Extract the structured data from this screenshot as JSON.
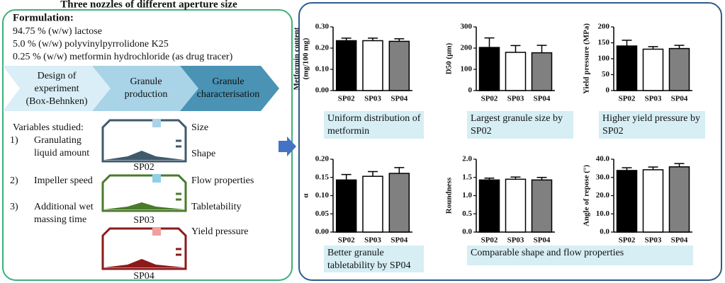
{
  "title": "Three nozzles of different aperture size",
  "formulation": {
    "heading": "Formulation:",
    "items": [
      "94.75 % (w/w) lactose",
      "5.0 % (w/w) polyvinylpyrrolidone K25",
      "0.25 % (w/w) metformin hydrochloride (as drug tracer)"
    ]
  },
  "steps": [
    [
      "Design of",
      "experiment",
      "(Box-Behnken)"
    ],
    [
      "Granule",
      "production"
    ],
    [
      "Granule",
      "characterisation"
    ]
  ],
  "variables": {
    "heading": "Variables studied:",
    "items": [
      {
        "number": "1)",
        "lines": [
          "Granulating",
          "liquid amount"
        ]
      },
      {
        "number": "2)",
        "lines": [
          "Impeller speed"
        ]
      },
      {
        "number": "3)",
        "lines": [
          "Additional wet",
          "massing time"
        ]
      }
    ]
  },
  "nozzles": [
    "SP02",
    "SP03",
    "SP04"
  ],
  "properties": [
    "Size",
    "Shape",
    "Flow properties",
    "Tabletability",
    "Yield pressure"
  ],
  "chart_data": [
    {
      "type": "bar",
      "ylabel": [
        "Metformin content",
        "(mg/100 mg)"
      ],
      "categories": [
        "SP02",
        "SP03",
        "SP04"
      ],
      "values": [
        0.235,
        0.235,
        0.232
      ],
      "errors": [
        0.012,
        0.012,
        0.012
      ],
      "colors": [
        "#000000",
        "#ffffff",
        "#808080"
      ],
      "ylim": [
        0,
        0.3
      ],
      "yticks": [
        {
          "value": 0,
          "label": "0.00"
        },
        {
          "value": 0.1,
          "label": "0.10"
        },
        {
          "value": 0.2,
          "label": "0.20"
        },
        {
          "value": 0.3,
          "label": "0.30"
        }
      ]
    },
    {
      "type": "bar",
      "ylabel": [
        "D50 (µm)"
      ],
      "categories": [
        "SP02",
        "SP03",
        "SP04"
      ],
      "values": [
        203,
        180,
        178
      ],
      "errors": [
        45,
        32,
        35
      ],
      "colors": [
        "#000000",
        "#ffffff",
        "#808080"
      ],
      "ylim": [
        0,
        300
      ],
      "yticks": [
        0,
        100,
        200,
        300
      ]
    },
    {
      "type": "bar",
      "ylabel": [
        "Yield pressure (MPa)"
      ],
      "categories": [
        "SP02",
        "SP03",
        "SP04"
      ],
      "values": [
        140,
        130,
        132
      ],
      "errors": [
        18,
        8,
        10
      ],
      "colors": [
        "#000000",
        "#ffffff",
        "#808080"
      ],
      "ylim": [
        0,
        200
      ],
      "yticks": [
        0,
        50,
        100,
        150,
        200
      ]
    },
    {
      "type": "bar",
      "ylabel": [
        "α"
      ],
      "categories": [
        "SP02",
        "SP03",
        "SP04"
      ],
      "values": [
        0.143,
        0.153,
        0.161
      ],
      "errors": [
        0.015,
        0.013,
        0.016
      ],
      "colors": [
        "#000000",
        "#ffffff",
        "#808080"
      ],
      "ylim": [
        0,
        0.2
      ],
      "yticks": [
        {
          "value": 0,
          "label": "0.00"
        },
        {
          "value": 0.05,
          "label": "0.05"
        },
        {
          "value": 0.1,
          "label": "0.10"
        },
        {
          "value": 0.15,
          "label": "0.15"
        },
        {
          "value": 0.2,
          "label": "0.20"
        }
      ]
    },
    {
      "type": "bar",
      "ylabel": [
        "Roundness"
      ],
      "categories": [
        "SP02",
        "SP03",
        "SP04"
      ],
      "values": [
        1.43,
        1.45,
        1.43
      ],
      "errors": [
        0.05,
        0.06,
        0.07
      ],
      "colors": [
        "#000000",
        "#ffffff",
        "#808080"
      ],
      "ylim": [
        0,
        2
      ],
      "yticks": [
        {
          "value": 0,
          "label": "0.0"
        },
        {
          "value": 0.5,
          "label": "0.5"
        },
        {
          "value": 1,
          "label": "1.0"
        },
        {
          "value": 1.5,
          "label": "1.5"
        },
        {
          "value": 2,
          "label": "2.0"
        }
      ]
    },
    {
      "type": "bar",
      "ylabel": [
        "Angle of repose (°)"
      ],
      "categories": [
        "SP02",
        "SP03",
        "SP04"
      ],
      "values": [
        33.8,
        34.2,
        35.8
      ],
      "errors": [
        1.5,
        1.5,
        1.8
      ],
      "colors": [
        "#000000",
        "#ffffff",
        "#808080"
      ],
      "ylim": [
        0,
        40
      ],
      "yticks": [
        {
          "value": 0,
          "label": "0.0"
        },
        {
          "value": 10,
          "label": "10.0"
        },
        {
          "value": 20,
          "label": "20.0"
        },
        {
          "value": 30,
          "label": "30.0"
        },
        {
          "value": 40,
          "label": "40.0"
        }
      ]
    }
  ],
  "findings": [
    [
      "Uniform distribution of",
      "metformin"
    ],
    [
      "Largest granule size by",
      "SP02"
    ],
    [
      "Higher yield pressure by",
      "SP02"
    ],
    [
      "Better granule",
      "tabletability by SP04"
    ],
    [
      "Comparable shape and flow properties"
    ]
  ]
}
